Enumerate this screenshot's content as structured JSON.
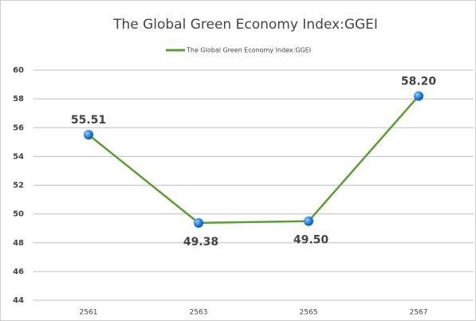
{
  "chart_data": {
    "type": "line",
    "title": "The Global Green Economy Index:GGEI",
    "categories": [
      "2561",
      "2563",
      "2565",
      "2567"
    ],
    "series": [
      {
        "name": "The Global Green Economy Index:GGEI",
        "color": "#5a9e32",
        "values": [
          55.51,
          49.38,
          49.5,
          58.2
        ],
        "value_labels": [
          "55.51",
          "49.38",
          "49.50",
          "58.20"
        ]
      }
    ],
    "ylim": [
      44,
      60
    ],
    "yticks": [
      44,
      46,
      48,
      50,
      52,
      54,
      56,
      58,
      60
    ],
    "grid": true,
    "legend": "top"
  }
}
